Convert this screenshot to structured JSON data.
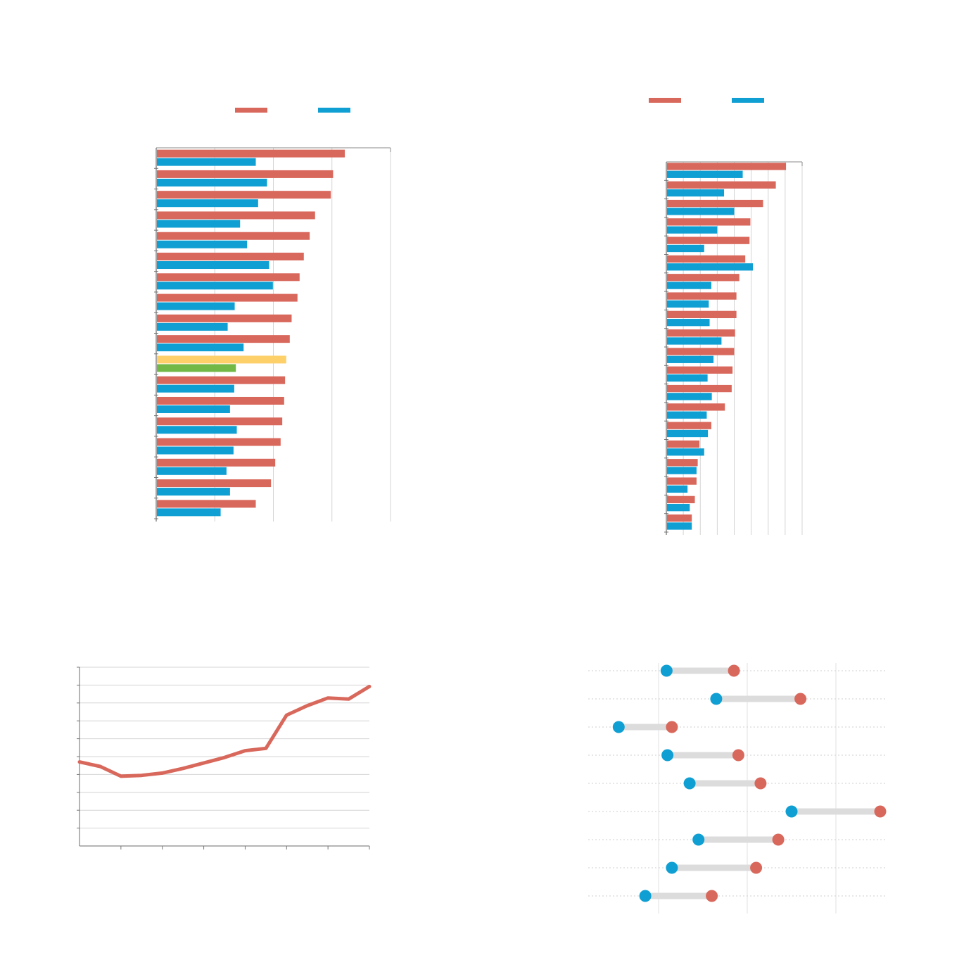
{
  "colors": {
    "red": "#d9685c",
    "blue": "#0f9fd3",
    "yellow": "#fdd06a",
    "green": "#72b847",
    "axis": "#6b6b6b",
    "grid": "#d4d4d4",
    "connector": "#dcdcdc"
  },
  "chart_data": [
    {
      "type": "bar",
      "orientation": "horizontal",
      "legend_placement": "top",
      "xlim": [
        0,
        100
      ],
      "grid": true,
      "series": [
        {
          "color": "#d9685c",
          "values": [
            80.5,
            75.5,
            74.5,
            67.8,
            65.5,
            63.0,
            61.2,
            60.3,
            57.8,
            57.0,
            55.5,
            55.0,
            54.6,
            53.8,
            53.1,
            50.8,
            49.0,
            42.5
          ],
          "highlight": {
            "10": "#fdd06a"
          }
        },
        {
          "color": "#0f9fd3",
          "values": [
            42.5,
            47.3,
            43.5,
            35.8,
            38.8,
            48.2,
            49.8,
            33.5,
            30.5,
            37.3,
            34.0,
            33.3,
            31.5,
            34.4,
            33.0,
            30.0,
            31.5,
            27.5
          ],
          "highlight": {
            "10": "#72b847"
          }
        }
      ]
    },
    {
      "type": "bar",
      "orientation": "horizontal",
      "legend_placement": "top",
      "xlim": [
        0,
        80
      ],
      "grid": true,
      "series": [
        {
          "color": "#d9685c",
          "values": [
            70.5,
            64.5,
            57.0,
            49.5,
            49.0,
            46.5,
            43.0,
            41.3,
            41.3,
            40.5,
            40.0,
            39.0,
            38.5,
            34.5,
            26.5,
            19.5,
            18.5,
            17.8,
            16.8,
            15.0
          ],
          "highlight": {}
        },
        {
          "color": "#0f9fd3",
          "values": [
            45.0,
            34.0,
            40.0,
            30.0,
            22.3,
            51.0,
            26.5,
            25.0,
            25.5,
            32.5,
            27.8,
            24.3,
            26.8,
            23.8,
            24.5,
            22.3,
            17.8,
            12.5,
            13.8,
            15.0
          ],
          "highlight": {}
        }
      ]
    },
    {
      "type": "line",
      "xlim": [
        0,
        14
      ],
      "ylim": [
        0,
        100
      ],
      "grid": true,
      "series": [
        {
          "color": "#d9685c",
          "x": [
            0,
            1,
            2,
            3,
            4,
            5,
            6,
            7,
            8,
            9,
            10,
            11,
            12,
            13,
            14
          ],
          "y": [
            47,
            44.5,
            39,
            39.5,
            40.8,
            43.4,
            46.4,
            49.5,
            53.3,
            54.6,
            73.2,
            78.5,
            82.8,
            82.2,
            89.2
          ]
        }
      ]
    },
    {
      "type": "dumbbell",
      "xlim": [
        0,
        2.6
      ],
      "grid": true,
      "rows": [
        {
          "start": 0.09,
          "end": 0.85
        },
        {
          "start": 0.65,
          "end": 1.6
        },
        {
          "start": -0.45,
          "end": 0.15
        },
        {
          "start": 0.1,
          "end": 0.9
        },
        {
          "start": 0.35,
          "end": 1.15
        },
        {
          "start": 1.5,
          "end": 2.5
        },
        {
          "start": 0.45,
          "end": 1.35
        },
        {
          "start": 0.15,
          "end": 1.1
        },
        {
          "start": -0.15,
          "end": 0.6
        }
      ]
    }
  ]
}
